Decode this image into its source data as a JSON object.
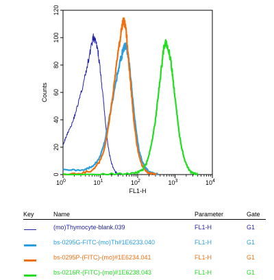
{
  "chart_data": {
    "type": "area",
    "xlabel": "FL1-H",
    "ylabel": "Counts",
    "xscale": "log",
    "xlim": [
      1,
      10000
    ],
    "ylim": [
      0,
      120
    ],
    "x_ticks": [
      {
        "base": "10",
        "exp": "0"
      },
      {
        "base": "10",
        "exp": "1"
      },
      {
        "base": "10",
        "exp": "2"
      },
      {
        "base": "10",
        "exp": "3"
      },
      {
        "base": "10",
        "exp": "4"
      }
    ],
    "y_ticks": [
      "0",
      "20",
      "40",
      "60",
      "80",
      "100",
      "120"
    ],
    "y_tick_values": [
      0,
      20,
      40,
      60,
      80,
      100,
      120
    ],
    "series": [
      {
        "name": "(mo)Thymocyte-blank.039",
        "color": "#1f1fa8",
        "width": 1,
        "x": [
          1,
          1.15,
          1.4,
          1.8,
          2.2,
          2.8,
          3.5,
          4.2,
          5,
          5.8,
          6.5,
          7.2,
          8,
          8.8,
          9.6,
          10.5,
          12,
          13.5,
          15,
          17,
          19,
          22,
          25,
          28,
          32
        ],
        "y": [
          22,
          26,
          32,
          38,
          46,
          56,
          66,
          76,
          86,
          95,
          100,
          98,
          94,
          88,
          80,
          70,
          55,
          40,
          27,
          17,
          10,
          5,
          2,
          1,
          0
        ]
      },
      {
        "name": "bs-0295G-FITC-(mo)Th#1E6233.040",
        "color": "#2a9fe0",
        "width": 2.2,
        "x": [
          1,
          2,
          4,
          6,
          8,
          10,
          13,
          16,
          20,
          25,
          30,
          35,
          40,
          45,
          50,
          55,
          60,
          70,
          80,
          95,
          110,
          130,
          160,
          200,
          250,
          300,
          350
        ],
        "y": [
          4,
          3,
          4,
          6,
          9,
          14,
          24,
          36,
          50,
          64,
          76,
          84,
          90,
          94,
          93,
          88,
          80,
          62,
          45,
          28,
          17,
          10,
          5,
          2,
          1,
          0.5,
          0
        ]
      },
      {
        "name": "bs-0295P-(FITC)-(mo)#1E6234.041",
        "color": "#f07010",
        "width": 2.2,
        "x": [
          1,
          3,
          6,
          9,
          12,
          15,
          18,
          22,
          26,
          30,
          34,
          38,
          42,
          46,
          50,
          55,
          62,
          70,
          80,
          95,
          110,
          130,
          160,
          200,
          250,
          320
        ],
        "y": [
          0,
          1,
          3,
          8,
          16,
          28,
          42,
          60,
          76,
          90,
          100,
          108,
          112,
          110,
          102,
          90,
          72,
          55,
          38,
          22,
          13,
          7,
          3,
          1,
          0.5,
          0
        ]
      },
      {
        "name": "bs-0216R-(FITC)-(mo)#1E6238.043",
        "color": "#22dd22",
        "width": 2.2,
        "x": [
          1,
          10,
          40,
          80,
          110,
          140,
          170,
          200,
          250,
          300,
          350,
          400,
          450,
          500,
          560,
          620,
          700,
          800,
          900,
          1000,
          1150,
          1300,
          1500,
          1800,
          2200,
          2600,
          3000,
          3500,
          4000
        ],
        "y": [
          0,
          0,
          0.5,
          1,
          2,
          4,
          8,
          14,
          26,
          40,
          56,
          70,
          82,
          92,
          96,
          95,
          90,
          80,
          68,
          56,
          42,
          30,
          20,
          11,
          5,
          2,
          1,
          0.5,
          0
        ]
      }
    ]
  },
  "key_table": {
    "headers": {
      "key": "Key",
      "name": "Name",
      "parameter": "Parameter",
      "gate": "Gate"
    },
    "rows": [
      {
        "name": "(mo)Thymocyte-blank.039",
        "parameter": "FL1-H",
        "gate": "G1",
        "color": "#1f1fa8"
      },
      {
        "name": "bs-0295G-FITC-(mo)Th#1E6233.040",
        "parameter": "FL1-H",
        "gate": "G1",
        "color": "#2a9fe0"
      },
      {
        "name": "bs-0295P-(FITC)-(mo)#1E6234.041",
        "parameter": "FL1-H",
        "gate": "G1",
        "color": "#f07010"
      },
      {
        "name": "bs-0216R-(FITC)-(mo)#1E6238.043",
        "parameter": "FL1-H",
        "gate": "G1",
        "color": "#22dd22"
      }
    ]
  }
}
